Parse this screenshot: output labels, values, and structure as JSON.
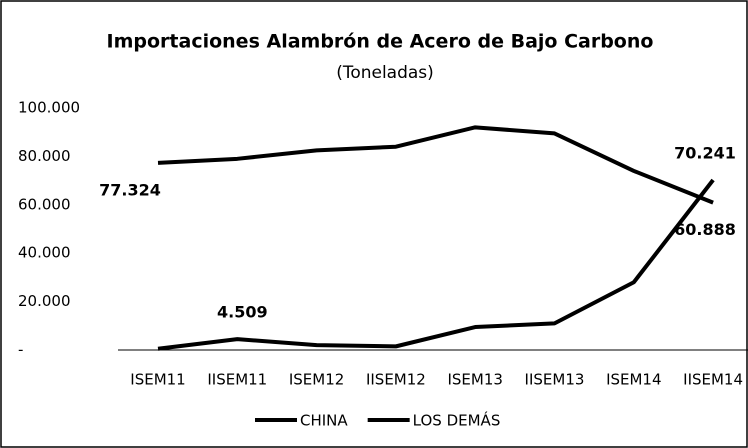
{
  "chart_data": {
    "type": "line",
    "title": "Importaciones Alambrón de Acero de Bajo Carbono",
    "subtitle": "(Toneladas)",
    "categories": [
      "ISEM11",
      "IISEM11",
      "ISEM12",
      "IISEM12",
      "ISEM13",
      "IISEM13",
      "ISEM14",
      "IISEM14"
    ],
    "series": [
      {
        "name": "CHINA",
        "color": "#000000",
        "values": [
          500,
          4509,
          2000,
          1500,
          9500,
          11000,
          28000,
          70241
        ],
        "value_labels": [
          null,
          "4.509",
          null,
          null,
          null,
          null,
          null,
          "70.241"
        ]
      },
      {
        "name": "LOS DEMÁS",
        "color": "#000000",
        "values": [
          77324,
          79000,
          82500,
          84000,
          92000,
          89500,
          74000,
          60888
        ],
        "value_labels": [
          "77.324",
          null,
          null,
          null,
          null,
          null,
          null,
          "60.888"
        ]
      }
    ],
    "ylim": [
      0,
      100000
    ],
    "yticks": [
      {
        "value": 0,
        "label": "-"
      },
      {
        "value": 20000,
        "label": "20.000"
      },
      {
        "value": 40000,
        "label": "40.000"
      },
      {
        "value": 60000,
        "label": "60.000"
      },
      {
        "value": 80000,
        "label": "80.000"
      },
      {
        "value": 100000,
        "label": "100.000"
      }
    ],
    "grid": false,
    "legend": "bottom"
  }
}
